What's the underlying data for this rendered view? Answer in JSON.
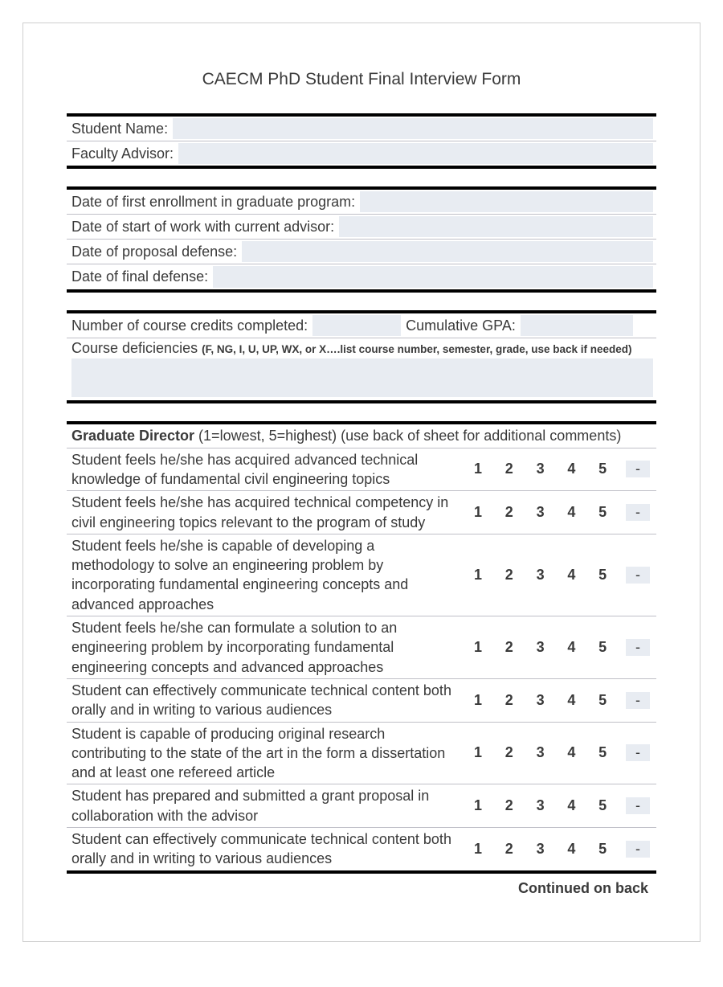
{
  "colors": {
    "page_bg": "#ffffff",
    "outer_border": "#cfcfcf",
    "text": "#3a3a3a",
    "rule_thick": "#000000",
    "rule_thin": "#bfbfc7",
    "fill_bg": "#e8ecf2"
  },
  "title": "CAECM PhD Student Final Interview Form",
  "section1": {
    "rows": [
      {
        "label": "Student Name:"
      },
      {
        "label": "Faculty Advisor:"
      }
    ]
  },
  "section2": {
    "rows": [
      {
        "label": "Date of first enrollment in graduate program:"
      },
      {
        "label": "Date of start of work with current advisor:"
      },
      {
        "label": "Date of proposal defense:"
      },
      {
        "label": "Date of final defense:"
      }
    ]
  },
  "section3": {
    "credits_label": "Number of course credits completed:",
    "gpa_label": "Cumulative GPA:",
    "deficiencies_label": "Course deficiencies ",
    "deficiencies_note": "(F, NG, I, U, UP, WX, or X….list course number, semester, grade, use back if needed)"
  },
  "ratings": {
    "head_strong": "Graduate Director",
    "head_rest": " (1=lowest, 5=highest) (use back of sheet for additional comments)",
    "scale": [
      "1",
      "2",
      "3",
      "4",
      "5",
      "-"
    ],
    "questions": [
      "Student feels he/she has acquired advanced technical knowledge of fundamental civil engineering topics",
      "Student feels he/she has acquired technical competency in civil engineering topics relevant to the program of study",
      "Student feels he/she is capable of developing a methodology to solve an engineering problem by incorporating fundamental engineering concepts and advanced approaches",
      "Student feels he/she can formulate a solution to an engineering problem by incorporating fundamental engineering concepts and advanced approaches",
      "Student can effectively communicate technical content both orally and in writing to various audiences",
      "Student is capable of producing original research contributing to the state of the art in the form a dissertation and at least one refereed article",
      "Student has prepared and submitted a grant proposal in collaboration with the advisor",
      "Student can effectively communicate technical content both orally and in writing to various audiences"
    ]
  },
  "continued": "Continued on back"
}
